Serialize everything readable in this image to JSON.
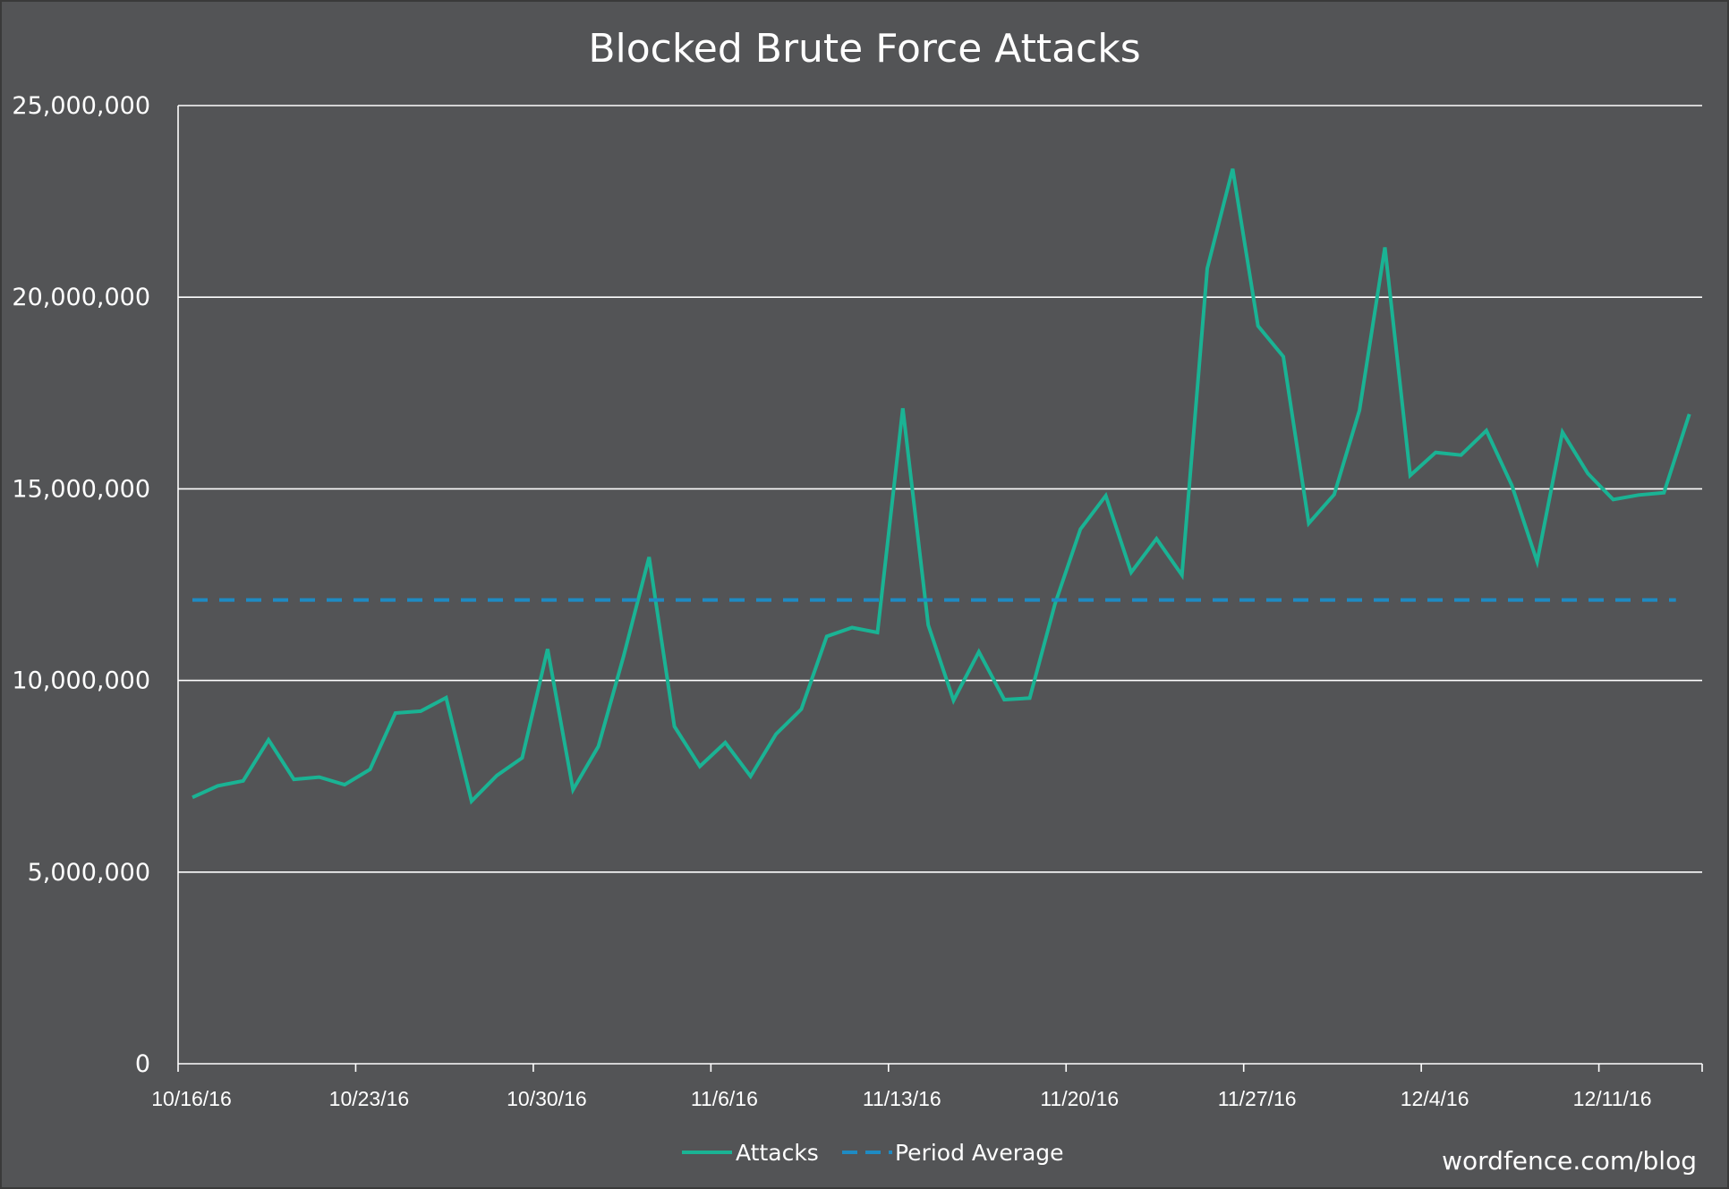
{
  "chart_data": {
    "type": "line",
    "title": "Blocked Brute Force Attacks",
    "watermark": "wordfence.com/blog",
    "colors": {
      "background": "#535456",
      "attacks": "#1ab394",
      "average": "#1e8bc3",
      "grid": "#ffffff",
      "text": "#ffffff"
    },
    "xlabel": "",
    "ylabel": "",
    "ylim": [
      0,
      25000000
    ],
    "grid": true,
    "legend_position": "bottom",
    "y_ticks": [
      {
        "value": 0,
        "label": "0"
      },
      {
        "value": 5000000,
        "label": "5,000,000"
      },
      {
        "value": 10000000,
        "label": "10,000,000"
      },
      {
        "value": 15000000,
        "label": "15,000,000"
      },
      {
        "value": 20000000,
        "label": "20,000,000"
      },
      {
        "value": 25000000,
        "label": "25,000,000"
      }
    ],
    "x_ticks": [
      "10/16/16",
      "10/23/16",
      "10/30/16",
      "11/6/16",
      "11/13/16",
      "11/20/16",
      "11/27/16",
      "12/4/16",
      "12/11/16"
    ],
    "x_start": "10/16/16",
    "series": [
      {
        "name": "Attacks",
        "style": "solid",
        "values": [
          6950000,
          7250000,
          7380000,
          8450000,
          7420000,
          7480000,
          7280000,
          7680000,
          9150000,
          9200000,
          9550000,
          6850000,
          7520000,
          7980000,
          10820000,
          7150000,
          8280000,
          10650000,
          13220000,
          8800000,
          7760000,
          8380000,
          7500000,
          8600000,
          9250000,
          11150000,
          11380000,
          11250000,
          17100000,
          11450000,
          9480000,
          10750000,
          9500000,
          9540000,
          12000000,
          13950000,
          14820000,
          12820000,
          13700000,
          12750000,
          20750000,
          23350000,
          19250000,
          18450000,
          14100000,
          14850000,
          17050000,
          21300000,
          15350000,
          15950000,
          15880000,
          16520000,
          15100000,
          13100000,
          16480000,
          15400000,
          14720000,
          14840000,
          14900000,
          16950000
        ]
      },
      {
        "name": "Period Average",
        "style": "dashed",
        "values": [
          12100000,
          12100000
        ]
      }
    ]
  }
}
